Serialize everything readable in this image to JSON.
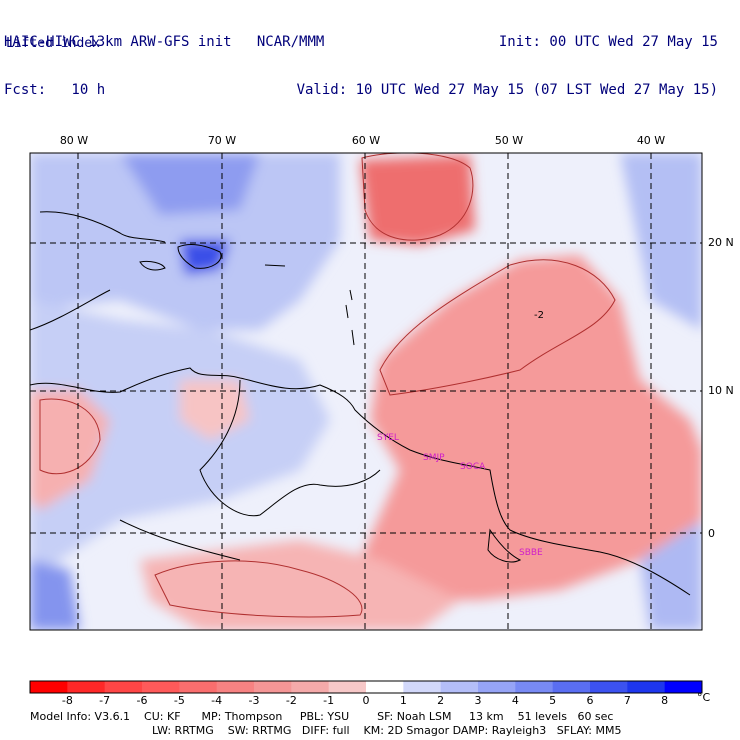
{
  "header": {
    "model_title": "HAIC-HIWC 13km ARW-GFS init",
    "institution": "NCAR/MMM",
    "init_time": "Init: 00 UTC Wed 27 May 15",
    "forecast": "Fcst:   10 h",
    "valid_time": "Valid: 10 UTC Wed 27 May 15 (07 LST Wed 27 May 15)"
  },
  "field_name": "Lifted index",
  "map": {
    "longitude_labels": [
      "80 W",
      "70 W",
      "60 W",
      "50 W",
      "40 W"
    ],
    "latitude_labels": [
      "20 N",
      "10 N",
      "0"
    ],
    "contour_label": "-2",
    "stations": [
      "SYEL",
      "SMJP",
      "SOCA",
      "SBBE"
    ],
    "colors": {
      "strong_negative": "#e23a3a",
      "negative": "#f4a0a0",
      "neutral": "#f4f0f0",
      "positive": "#b6c0f4",
      "strong_positive": "#3a46e6",
      "station_label": "#d020c8"
    }
  },
  "colorbar": {
    "labels": [
      "-8",
      "-7",
      "-6",
      "-5",
      "-4",
      "-3",
      "-2",
      "-1",
      "0",
      "1",
      "2",
      "3",
      "4",
      "5",
      "6",
      "7",
      "8"
    ],
    "unit": "°C",
    "colors": [
      "#ff0000",
      "#ff2828",
      "#ff4646",
      "#ff5a5a",
      "#fa6e6e",
      "#f78282",
      "#f59696",
      "#f5aaaa",
      "#f7c8c8",
      "#ffffff",
      "#d2d8fa",
      "#b4bef8",
      "#96a4f6",
      "#788af4",
      "#5a6ef2",
      "#3c52f0",
      "#1e36ee",
      "#0000ff"
    ]
  },
  "footer": {
    "line1": "Model Info: V3.6.1    CU: KF      MP: Thompson     PBL: YSU        SF: Noah LSM     13 km    51 levels   60 sec",
    "line2": "LW: RRTMG    SW: RRTMG   DIFF: full    KM: 2D Smagor DAMP: Rayleigh3   SFLAY: MM5"
  }
}
